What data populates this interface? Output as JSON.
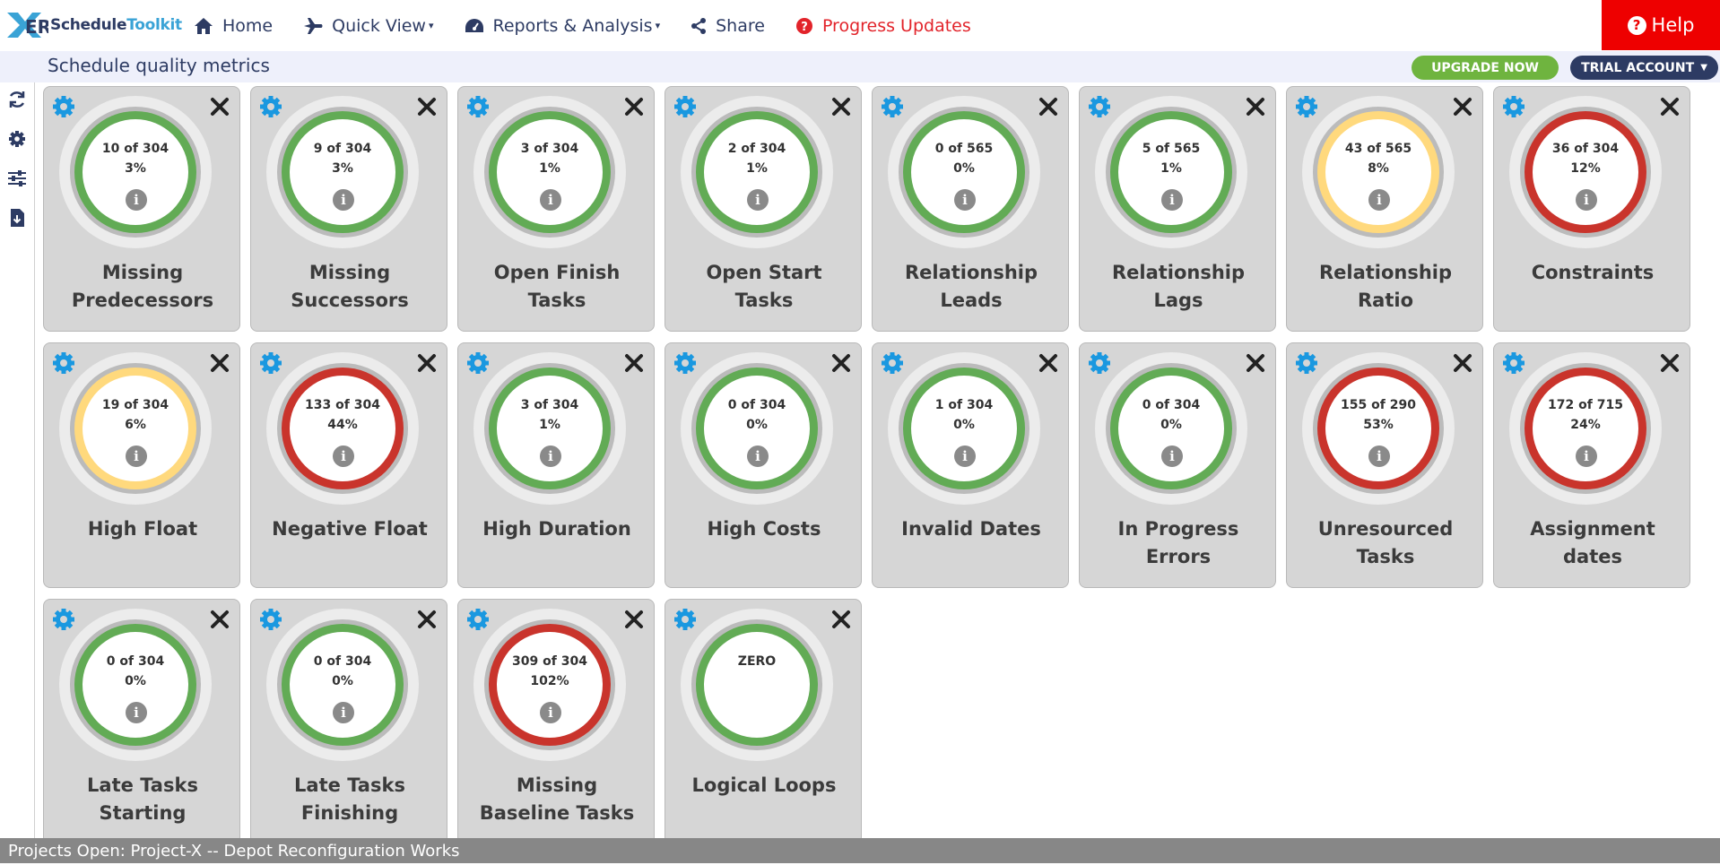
{
  "app": {
    "logo_part1": "Schedule",
    "logo_part2": "Toolkit"
  },
  "nav": {
    "home": "Home",
    "quick_view": "Quick View",
    "reports": "Reports & Analysis",
    "share": "Share",
    "progress": "Progress Updates",
    "help": "Help"
  },
  "header": {
    "title": "Schedule quality metrics",
    "upgrade": "UPGRADE NOW",
    "trial": "TRIAL ACCOUNT"
  },
  "colors": {
    "green": "#62ab55",
    "yellow": "#ffd97d",
    "red": "#c9342c",
    "accent_blue": "#1a98e0",
    "navy": "#2d3b63"
  },
  "sidebar": {
    "icons": [
      "refresh-icon",
      "gear-icon",
      "sliders-icon",
      "download-file-icon"
    ]
  },
  "metrics": [
    {
      "count": "10 of 304",
      "pct": "3%",
      "status": "green",
      "label": [
        "Missing",
        "Predecessors"
      ]
    },
    {
      "count": "9 of 304",
      "pct": "3%",
      "status": "green",
      "label": [
        "Missing",
        "Successors"
      ]
    },
    {
      "count": "3 of 304",
      "pct": "1%",
      "status": "green",
      "label": [
        "Open Finish",
        "Tasks"
      ]
    },
    {
      "count": "2 of 304",
      "pct": "1%",
      "status": "green",
      "label": [
        "Open Start",
        "Tasks"
      ]
    },
    {
      "count": "0 of 565",
      "pct": "0%",
      "status": "green",
      "label": [
        "Relationship",
        "Leads"
      ]
    },
    {
      "count": "5 of 565",
      "pct": "1%",
      "status": "green",
      "label": [
        "Relationship",
        "Lags"
      ]
    },
    {
      "count": "43 of 565",
      "pct": "8%",
      "status": "yellow",
      "label": [
        "Relationship",
        "Ratio"
      ]
    },
    {
      "count": "36 of 304",
      "pct": "12%",
      "status": "red",
      "label": [
        "Constraints"
      ]
    },
    {
      "count": "19 of 304",
      "pct": "6%",
      "status": "yellow",
      "label": [
        "High Float"
      ]
    },
    {
      "count": "133 of 304",
      "pct": "44%",
      "status": "red",
      "label": [
        "Negative Float"
      ]
    },
    {
      "count": "3 of 304",
      "pct": "1%",
      "status": "green",
      "label": [
        "High Duration"
      ]
    },
    {
      "count": "0 of 304",
      "pct": "0%",
      "status": "green",
      "label": [
        "High Costs"
      ]
    },
    {
      "count": "1 of 304",
      "pct": "0%",
      "status": "green",
      "label": [
        "Invalid Dates"
      ]
    },
    {
      "count": "0 of 304",
      "pct": "0%",
      "status": "green",
      "label": [
        "In Progress",
        "Errors"
      ]
    },
    {
      "count": "155 of 290",
      "pct": "53%",
      "status": "red",
      "label": [
        "Unresourced",
        "Tasks"
      ]
    },
    {
      "count": "172 of 715",
      "pct": "24%",
      "status": "red",
      "label": [
        "Assignment",
        "dates"
      ]
    },
    {
      "count": "0 of 304",
      "pct": "0%",
      "status": "green",
      "label": [
        "Late Tasks",
        "Starting"
      ]
    },
    {
      "count": "0 of 304",
      "pct": "0%",
      "status": "green",
      "label": [
        "Late Tasks",
        "Finishing"
      ]
    },
    {
      "count": "309 of 304",
      "pct": "102%",
      "status": "red",
      "label": [
        "Missing",
        "Baseline Tasks"
      ]
    },
    {
      "zero": "ZERO",
      "status": "green",
      "label": [
        "Logical Loops"
      ]
    }
  ],
  "footer": {
    "text": "Projects Open: Project-X -- Depot Reconfiguration Works"
  }
}
